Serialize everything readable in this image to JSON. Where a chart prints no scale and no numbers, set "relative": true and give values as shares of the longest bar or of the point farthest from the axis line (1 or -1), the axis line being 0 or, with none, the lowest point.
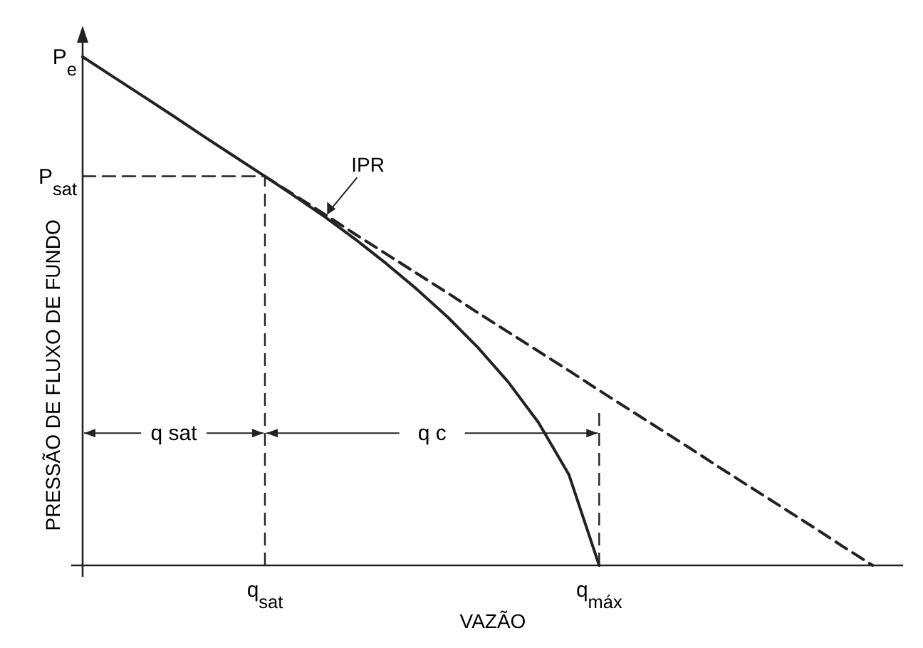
{
  "chart_data": {
    "type": "line",
    "relative": true,
    "xlabel": "VAZÃO",
    "ylabel": "PRESSÃO DE FLUXO DE FUNDO",
    "categories": [
      null,
      null,
      null,
      null,
      null,
      null,
      "q$_{sat}$",
      null,
      null,
      null,
      null,
      null,
      null,
      null,
      null,
      null,
      null,
      "q$_{máx}$",
      null,
      null,
      null,
      null,
      null,
      null,
      null,
      null,
      null,
      null
    ],
    "marker": "none",
    "series": [
      {
        "color": "#222222",
        "line_style": "solid",
        "values": [
          1,
          0.961,
          0.922,
          0.883,
          0.843,
          0.804,
          0.765,
          0.725,
          0.684,
          0.64,
          0.593,
          0.543,
          0.489,
          0.429,
          0.361,
          0.281,
          0.179,
          0,
          null,
          null,
          null,
          null,
          null,
          null,
          null,
          null,
          null,
          null
        ]
      },
      {
        "color": "#222222",
        "line_style": "dashed",
        "values": [
          null,
          null,
          null,
          null,
          null,
          null,
          0.765,
          0.727,
          0.689,
          0.65,
          0.612,
          0.574,
          0.536,
          0.497,
          0.459,
          0.421,
          0.383,
          0.344,
          0.306,
          0.268,
          0.23,
          0.191,
          0.153,
          0.115,
          0.077,
          0.038,
          0,
          null
        ]
      },
      {
        "color": "#222222",
        "line_style": "dashed",
        "values": [
          0.765,
          0.765,
          0.765,
          0.765,
          0.765,
          0.765,
          0.765,
          null,
          null,
          null,
          null,
          null,
          null,
          null,
          null,
          null,
          null,
          null,
          null,
          null,
          null,
          null,
          null,
          null,
          null,
          null,
          null,
          null
        ]
      }
    ],
    "ref_lines": [
      {
        "axis": "x",
        "value": "q$_{sat}$",
        "line_style": "dashed",
        "color": "#222222"
      },
      {
        "axis": "x",
        "value": "q$_{máx}$",
        "line_style": "dashed",
        "color": "#222222"
      }
    ],
    "annotations": [
      "P$_{e}$",
      "P$_{sat}$",
      "IPR",
      "q sat",
      "q c"
    ]
  }
}
